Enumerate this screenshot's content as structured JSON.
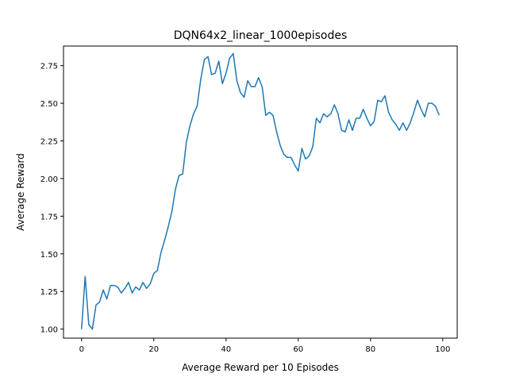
{
  "chart_data": {
    "type": "line",
    "title": "DQN64x2_linear_1000episodes",
    "xlabel": "Average Reward per 10 Episodes",
    "ylabel": "Average Reward",
    "xlim": [
      -5,
      104
    ],
    "ylim": [
      0.94,
      2.88
    ],
    "xticks": [
      0,
      20,
      40,
      60,
      80,
      100
    ],
    "yticks": [
      1.0,
      1.25,
      1.5,
      1.75,
      2.0,
      2.25,
      2.5,
      2.75
    ],
    "grid": false,
    "legend": "none",
    "series": [
      {
        "color": "#1f77b4",
        "x": [
          0,
          1,
          2,
          3,
          4,
          5,
          6,
          7,
          8,
          9,
          10,
          11,
          12,
          13,
          14,
          15,
          16,
          17,
          18,
          19,
          20,
          21,
          22,
          23,
          24,
          25,
          26,
          27,
          28,
          29,
          30,
          31,
          32,
          33,
          34,
          35,
          36,
          37,
          38,
          39,
          40,
          41,
          42,
          43,
          44,
          45,
          46,
          47,
          48,
          49,
          50,
          51,
          52,
          53,
          54,
          55,
          56,
          57,
          58,
          59,
          60,
          61,
          62,
          63,
          64,
          65,
          66,
          67,
          68,
          69,
          70,
          71,
          72,
          73,
          74,
          75,
          76,
          77,
          78,
          79,
          80,
          81,
          82,
          83,
          84,
          85,
          86,
          87,
          88,
          89,
          90,
          91,
          92,
          93,
          94,
          95,
          96,
          97,
          98,
          99
        ],
        "values": [
          1.0,
          1.35,
          1.03,
          1.0,
          1.16,
          1.18,
          1.26,
          1.2,
          1.29,
          1.29,
          1.28,
          1.24,
          1.27,
          1.31,
          1.24,
          1.28,
          1.26,
          1.31,
          1.27,
          1.3,
          1.37,
          1.39,
          1.51,
          1.59,
          1.68,
          1.78,
          1.93,
          2.02,
          2.03,
          2.24,
          2.35,
          2.43,
          2.48,
          2.66,
          2.79,
          2.81,
          2.69,
          2.7,
          2.78,
          2.63,
          2.7,
          2.8,
          2.83,
          2.65,
          2.57,
          2.54,
          2.65,
          2.61,
          2.61,
          2.67,
          2.61,
          2.42,
          2.44,
          2.42,
          2.31,
          2.22,
          2.16,
          2.14,
          2.14,
          2.09,
          2.05,
          2.2,
          2.13,
          2.15,
          2.21,
          2.4,
          2.37,
          2.43,
          2.41,
          2.43,
          2.49,
          2.43,
          2.32,
          2.31,
          2.39,
          2.32,
          2.4,
          2.4,
          2.46,
          2.4,
          2.35,
          2.38,
          2.52,
          2.51,
          2.55,
          2.44,
          2.39,
          2.36,
          2.32,
          2.37,
          2.32,
          2.37,
          2.44,
          2.52,
          2.46,
          2.41,
          2.5,
          2.5,
          2.48,
          2.42
        ]
      }
    ]
  }
}
